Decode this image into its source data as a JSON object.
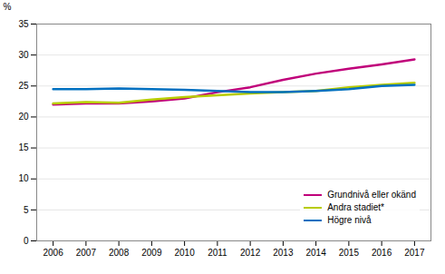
{
  "chart_data": {
    "type": "line",
    "x": [
      2006,
      2007,
      2008,
      2009,
      2010,
      2011,
      2012,
      2013,
      2014,
      2015,
      2016,
      2017
    ],
    "series": [
      {
        "name": "Grundnivå eller okänd",
        "color": "#c0007a",
        "values": [
          22.0,
          22.2,
          22.2,
          22.5,
          23.0,
          24.0,
          24.8,
          26.0,
          27.0,
          27.8,
          28.5,
          29.3
        ]
      },
      {
        "name": "Andra stadiet*",
        "color": "#b8cc00",
        "values": [
          22.2,
          22.4,
          22.3,
          22.8,
          23.2,
          23.5,
          23.8,
          24.0,
          24.2,
          24.8,
          25.2,
          25.5
        ]
      },
      {
        "name": "Högre nivå",
        "color": "#0070c0",
        "values": [
          24.5,
          24.5,
          24.6,
          24.5,
          24.4,
          24.2,
          24.0,
          24.0,
          24.2,
          24.5,
          25.0,
          25.2
        ]
      }
    ],
    "ylabel": "%",
    "xlim": [
      2005.5,
      2017.5
    ],
    "xticks": [
      2006,
      2007,
      2008,
      2009,
      2010,
      2011,
      2012,
      2013,
      2014,
      2015,
      2016,
      2017
    ],
    "ylim": [
      0,
      35
    ],
    "yticks": [
      0,
      5,
      10,
      15,
      20,
      25,
      30,
      35
    ],
    "grid": true,
    "legend": "lower right"
  }
}
